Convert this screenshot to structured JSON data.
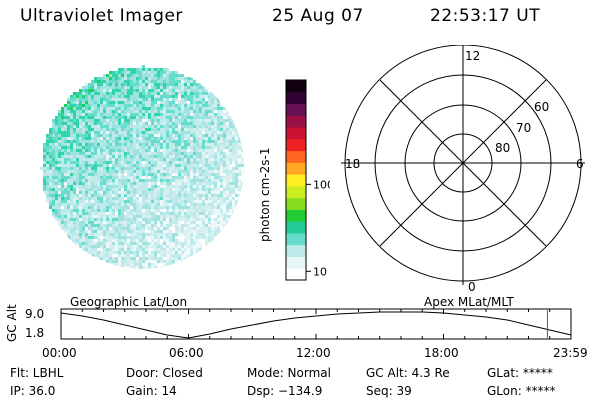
{
  "header": {
    "instrument": "Ultraviolet Imager",
    "date": "25 Aug 07",
    "time": "22:53:17 UT"
  },
  "colorbar": {
    "unit_label": "photon cm-2s-1",
    "ticks": [
      {
        "label": "100",
        "value": 100
      },
      {
        "label": "10",
        "value": 10
      }
    ],
    "colors": [
      "#ffffff",
      "#e6f7f7",
      "#bfeaea",
      "#66ddcc",
      "#22cc99",
      "#22cc33",
      "#88dd22",
      "#ccee22",
      "#ffee22",
      "#ffaa22",
      "#ff6622",
      "#ee2222",
      "#cc1133",
      "#991144",
      "#661155",
      "#330033",
      "#110011"
    ]
  },
  "polar_plot": {
    "mlt_labels": [
      "12",
      "18",
      "6",
      "0"
    ],
    "lat_labels": [
      "60",
      "70",
      "80"
    ]
  },
  "timeline": {
    "left_label": "Geographic Lat/Lon",
    "right_label": "Apex MLat/MLT",
    "axis_title": "GC Alt",
    "y_ticks": [
      "9.0",
      "1.8"
    ],
    "x_ticks": [
      "00:00",
      "06:00",
      "12:00",
      "18:00",
      "23:59"
    ],
    "current_time_hours": 22.89,
    "marker_color": "#dd2222"
  },
  "status": {
    "row1": {
      "flt": "Flt: LBHL",
      "door": "Door: Closed",
      "mode": "Mode: Normal",
      "gc_alt": "GC Alt: 4.3 Re",
      "glat": "GLat: *****"
    },
    "row2": {
      "ip": "IP: 36.0",
      "gain": "Gain: 14",
      "dsp": "Dsp: −134.9",
      "seq": "Seq: 39",
      "glon": "GLon: *****"
    }
  }
}
